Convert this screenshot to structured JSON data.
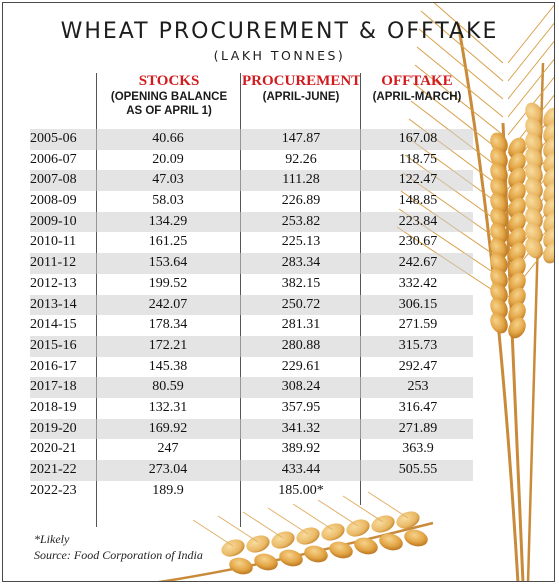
{
  "title": "WHEAT PROCUREMENT & OFFTAKE",
  "subtitle": "(LAKH TONNES)",
  "columns": [
    {
      "name": "STOCKS",
      "sub": "(OPENING BALANCE AS OF APRIL 1)"
    },
    {
      "name": "PROCUREMENT",
      "sub": "(APRIL-JUNE)"
    },
    {
      "name": "OFFTAKE",
      "sub": "(APRIL-MARCH)"
    }
  ],
  "rows": [
    {
      "year": "2005-06",
      "stocks": "40.66",
      "procurement": "147.87",
      "offtake": "167.08"
    },
    {
      "year": "2006-07",
      "stocks": "20.09",
      "procurement": "92.26",
      "offtake": "118.75"
    },
    {
      "year": "2007-08",
      "stocks": "47.03",
      "procurement": "111.28",
      "offtake": "122.47"
    },
    {
      "year": "2008-09",
      "stocks": "58.03",
      "procurement": "226.89",
      "offtake": "148.85"
    },
    {
      "year": "2009-10",
      "stocks": "134.29",
      "procurement": "253.82",
      "offtake": "223.84"
    },
    {
      "year": "2010-11",
      "stocks": "161.25",
      "procurement": "225.13",
      "offtake": "230.67"
    },
    {
      "year": "2011-12",
      "stocks": "153.64",
      "procurement": "283.34",
      "offtake": "242.67"
    },
    {
      "year": "2012-13",
      "stocks": "199.52",
      "procurement": "382.15",
      "offtake": "332.42"
    },
    {
      "year": "2013-14",
      "stocks": "242.07",
      "procurement": "250.72",
      "offtake": "306.15"
    },
    {
      "year": "2014-15",
      "stocks": "178.34",
      "procurement": "281.31",
      "offtake": "271.59"
    },
    {
      "year": "2015-16",
      "stocks": "172.21",
      "procurement": "280.88",
      "offtake": "315.73"
    },
    {
      "year": "2016-17",
      "stocks": "145.38",
      "procurement": "229.61",
      "offtake": "292.47"
    },
    {
      "year": "2017-18",
      "stocks": "80.59",
      "procurement": "308.24",
      "offtake": "253"
    },
    {
      "year": "2018-19",
      "stocks": "132.31",
      "procurement": "357.95",
      "offtake": "316.47"
    },
    {
      "year": "2019-20",
      "stocks": "169.92",
      "procurement": "341.32",
      "offtake": "271.89"
    },
    {
      "year": "2020-21",
      "stocks": "247",
      "procurement": "389.92",
      "offtake": "363.9"
    },
    {
      "year": "2021-22",
      "stocks": "273.04",
      "procurement": "433.44",
      "offtake": "505.55"
    },
    {
      "year": "2022-23",
      "stocks": "189.9",
      "procurement": "185.00*",
      "offtake": ""
    }
  ],
  "footnote": "*Likely",
  "source": "Source: Food Corporation of India",
  "colors": {
    "header_red": "#d11b1f",
    "band_grey": "#cdcdcd",
    "wheat_gold": "#e0a441"
  }
}
